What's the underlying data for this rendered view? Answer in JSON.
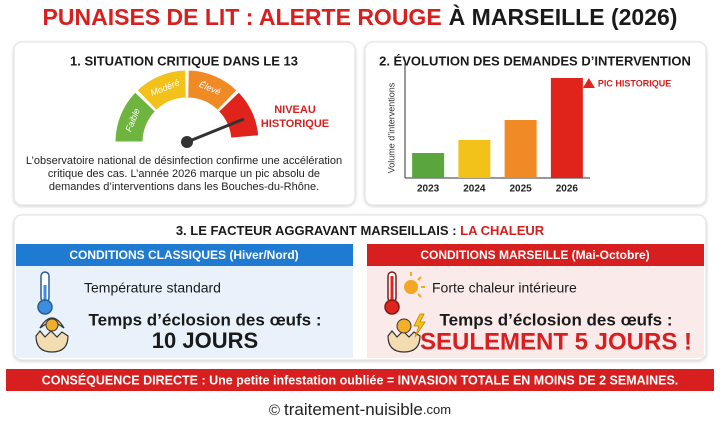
{
  "title": {
    "alert": "PUNAISES DE LIT : ALERTE ROUGE",
    "place": "À MARSEILLE (2026)"
  },
  "situation": {
    "heading": "1. SITUATION CRITIQUE DANS LE 13",
    "gauge_labels": [
      "Faible",
      "Modéré",
      "Élevé"
    ],
    "alert_lines": [
      "NIVEAU",
      "HISTORIQUE"
    ],
    "text_lines": [
      "L’observatoire national de désinfection confirme une accélération",
      "critique des cas. L’année 2026 marque un pic absolu de",
      "demandes d’interventions dans les Bouches-du-Rhône."
    ]
  },
  "evolution": {
    "heading": "2. ÉVOLUTION DES DEMANDES D’INTERVENTION",
    "chart_data": {
      "type": "bar",
      "y_label": "Volume d’interventions",
      "categories": [
        "2023",
        "2024",
        "2025",
        "2026"
      ],
      "values": [
        25,
        38,
        58,
        100
      ],
      "colors": [
        "#5aa63c",
        "#f3c21a",
        "#f08a24",
        "#e0231b"
      ],
      "ylim": [
        0,
        110
      ],
      "annotation": "PIC HISTORIQUE"
    }
  },
  "factor": {
    "heading": "3. LE FACTEUR AGGRAVANT MARSEILLAIS : ",
    "highlight": "LA CHALEUR",
    "classic": {
      "header": "CONDITIONS CLASSIQUES (Hiver/Nord)",
      "condition": "Température standard",
      "label": "Temps d’éclosion des œufs :",
      "result": "10 JOURS"
    },
    "marseille": {
      "header": "CONDITIONS MARSEILLE (Mai-Octobre)",
      "condition": "Forte chaleur intérieure",
      "label": "Temps d’éclosion des œufs :",
      "result": "SEULEMENT 5 JOURS !"
    }
  },
  "consequence": "CONSÉQUENCE DIRECTE : Une petite infestation oubliée = INVASION TOTALE EN MOINS DE 2 SEMAINES.",
  "footer": {
    "copyright": "©",
    "site": "traitement-nuisible",
    "tld": ".com"
  }
}
